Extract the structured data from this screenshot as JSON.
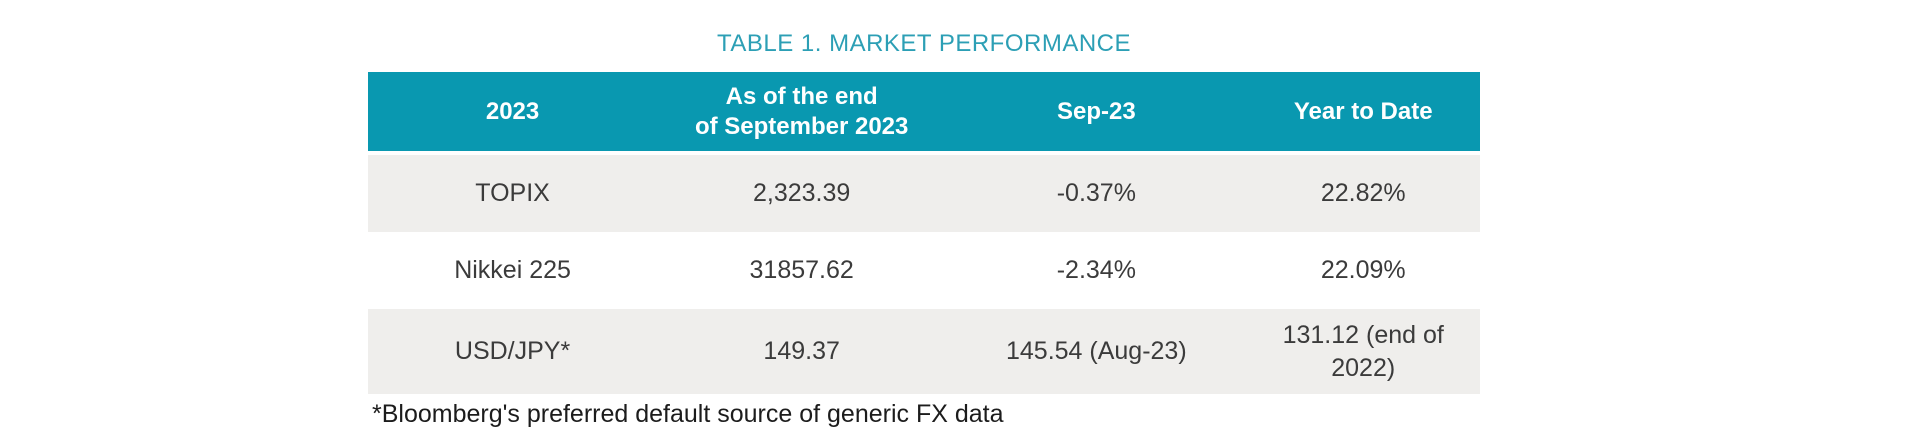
{
  "title": "TABLE 1. MARKET PERFORMANCE",
  "table": {
    "headers": [
      "2023",
      "As of the end\nof September 2023",
      "Sep-23",
      "Year to Date"
    ],
    "rows": [
      {
        "cells": [
          "TOPIX",
          "2,323.39",
          "-0.37%",
          "22.82%"
        ]
      },
      {
        "cells": [
          "Nikkei 225",
          "31857.62",
          "-2.34%",
          "22.09%"
        ]
      },
      {
        "cells": [
          "USD/JPY*",
          "149.37",
          "145.54 (Aug-23)",
          "131.12 (end of 2022)"
        ]
      }
    ]
  },
  "footnote": "*Bloomberg's preferred default source of generic FX data",
  "colors": {
    "header_bg": "#0998B0",
    "title_text": "#2C9FB5",
    "shaded_row_bg": "#EFEEEC",
    "body_text": "#3B3B3B",
    "header_text": "#FFFFFF"
  },
  "chart_data": {
    "type": "table",
    "title": "TABLE 1. MARKET PERFORMANCE",
    "columns": [
      "2023",
      "As of the end of September 2023",
      "Sep-23",
      "Year to Date"
    ],
    "rows": [
      [
        "TOPIX",
        "2,323.39",
        "-0.37%",
        "22.82%"
      ],
      [
        "Nikkei 225",
        "31857.62",
        "-2.34%",
        "22.09%"
      ],
      [
        "USD/JPY*",
        "149.37",
        "145.54 (Aug-23)",
        "131.12 (end of 2022)"
      ]
    ],
    "footnote": "*Bloomberg's preferred default source of generic FX data"
  }
}
